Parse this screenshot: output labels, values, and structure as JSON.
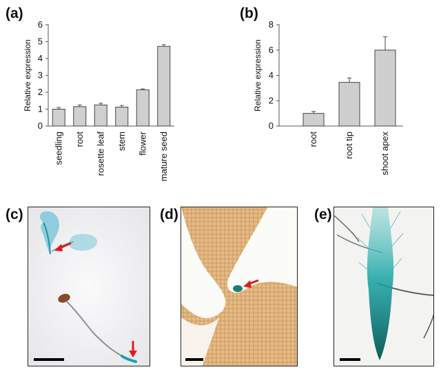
{
  "chart_data": [
    {
      "panel": "(a)",
      "type": "bar",
      "ylabel": "Relative expression",
      "ylim": [
        0,
        6
      ],
      "yticks": [
        0,
        1,
        2,
        3,
        4,
        5,
        6
      ],
      "categories": [
        "seedling",
        "root",
        "rosette leaf",
        "stem",
        "flower",
        "mature seed"
      ],
      "values": [
        1.0,
        1.15,
        1.25,
        1.12,
        2.15,
        4.72
      ],
      "errors": [
        0.1,
        0.1,
        0.1,
        0.1,
        0.05,
        0.1
      ],
      "bar_color": "#cfcfcf"
    },
    {
      "panel": "(b)",
      "type": "bar",
      "ylabel": "Relative expression",
      "ylim": [
        0,
        8
      ],
      "yticks": [
        0,
        2,
        4,
        6,
        8
      ],
      "categories": [
        "root",
        "root tip",
        "shoot apex"
      ],
      "values": [
        1.0,
        3.45,
        6.0
      ],
      "errors": [
        0.15,
        0.35,
        1.05
      ],
      "bar_color": "#cfcfcf"
    }
  ],
  "photos": [
    {
      "panel": "(c)"
    },
    {
      "panel": "(d)"
    },
    {
      "panel": "(e)"
    }
  ],
  "colors": {
    "stain": "#1aa6a6",
    "arrow": "#e01b1b",
    "tissue": "#c9873c"
  }
}
